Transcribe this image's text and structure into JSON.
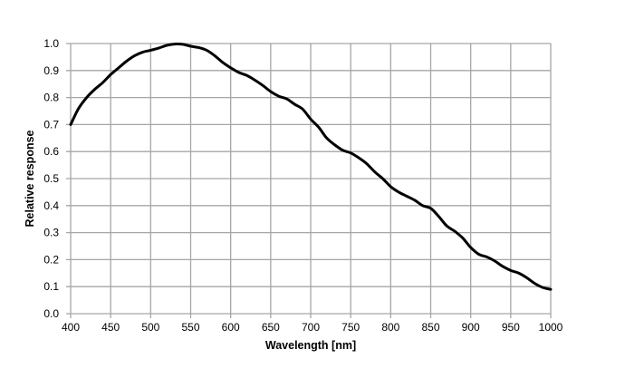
{
  "chart_data": {
    "type": "line",
    "title": "",
    "xlabel": "Wavelength [nm]",
    "ylabel": "Relative response",
    "xlim": [
      400,
      1000
    ],
    "ylim": [
      0,
      1.0
    ],
    "xticks": [
      "400",
      "450",
      "500",
      "550",
      "600",
      "650",
      "700",
      "750",
      "800",
      "850",
      "900",
      "950",
      "1000"
    ],
    "yticks": [
      "0.0",
      "0.1",
      "0.2",
      "0.3",
      "0.4",
      "0.5",
      "0.6",
      "0.7",
      "0.8",
      "0.9",
      "1.0"
    ],
    "grid": true,
    "line_color": "#000000",
    "grid_color": "#a6a6a6",
    "series": [
      {
        "x": [
          400,
          410,
          420,
          430,
          440,
          450,
          460,
          470,
          480,
          490,
          500,
          510,
          520,
          530,
          540,
          550,
          560,
          570,
          580,
          590,
          600,
          610,
          620,
          630,
          640,
          650,
          660,
          670,
          680,
          690,
          700,
          710,
          720,
          730,
          740,
          750,
          760,
          770,
          780,
          790,
          800,
          810,
          820,
          830,
          840,
          850,
          860,
          870,
          880,
          890,
          900,
          910,
          920,
          930,
          940,
          950,
          960,
          970,
          980,
          990,
          1000
        ],
        "y": [
          0.7,
          0.76,
          0.8,
          0.83,
          0.855,
          0.885,
          0.91,
          0.935,
          0.955,
          0.968,
          0.975,
          0.983,
          0.993,
          0.998,
          0.997,
          0.99,
          0.985,
          0.975,
          0.955,
          0.93,
          0.91,
          0.893,
          0.882,
          0.865,
          0.845,
          0.822,
          0.805,
          0.795,
          0.775,
          0.757,
          0.72,
          0.69,
          0.65,
          0.625,
          0.605,
          0.595,
          0.577,
          0.555,
          0.525,
          0.5,
          0.47,
          0.45,
          0.435,
          0.42,
          0.4,
          0.39,
          0.36,
          0.325,
          0.305,
          0.28,
          0.245,
          0.22,
          0.21,
          0.195,
          0.175,
          0.16,
          0.15,
          0.133,
          0.112,
          0.097,
          0.09
        ]
      }
    ]
  }
}
